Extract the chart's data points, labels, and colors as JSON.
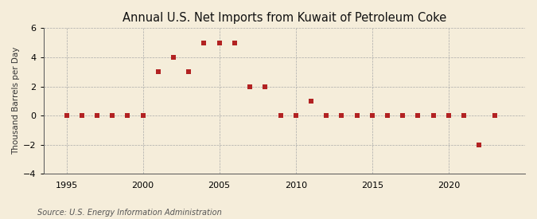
{
  "title": "Annual U.S. Net Imports from Kuwait of Petroleum Coke",
  "ylabel": "Thousand Barrels per Day",
  "source": "Source: U.S. Energy Information Administration",
  "background_color": "#f5edda",
  "plot_background_color": "#f5edda",
  "marker_color": "#b22222",
  "grid_color": "#aaaaaa",
  "dashed_vline_color": "#aaaaaa",
  "years": [
    1995,
    1996,
    1997,
    1998,
    1999,
    2000,
    2001,
    2002,
    2003,
    2004,
    2005,
    2006,
    2007,
    2008,
    2009,
    2010,
    2011,
    2012,
    2013,
    2014,
    2015,
    2016,
    2017,
    2018,
    2019,
    2020,
    2021,
    2022,
    2023
  ],
  "values": [
    0,
    0,
    0,
    0,
    0,
    0,
    3,
    4,
    3,
    5,
    5,
    5,
    2,
    2,
    0,
    0,
    1,
    0,
    0,
    0,
    0,
    0,
    0,
    0,
    0,
    0,
    0,
    -2,
    0
  ],
  "ylim": [
    -4,
    6
  ],
  "yticks": [
    -4,
    -2,
    0,
    2,
    4,
    6
  ],
  "xlim": [
    1993.5,
    2025
  ],
  "xticks": [
    1995,
    2000,
    2005,
    2010,
    2015,
    2020
  ],
  "vlines": [
    1995,
    2000,
    2005,
    2010,
    2015,
    2020
  ],
  "title_fontsize": 10.5,
  "label_fontsize": 7.5,
  "tick_fontsize": 8,
  "source_fontsize": 7,
  "marker_size": 4.5
}
